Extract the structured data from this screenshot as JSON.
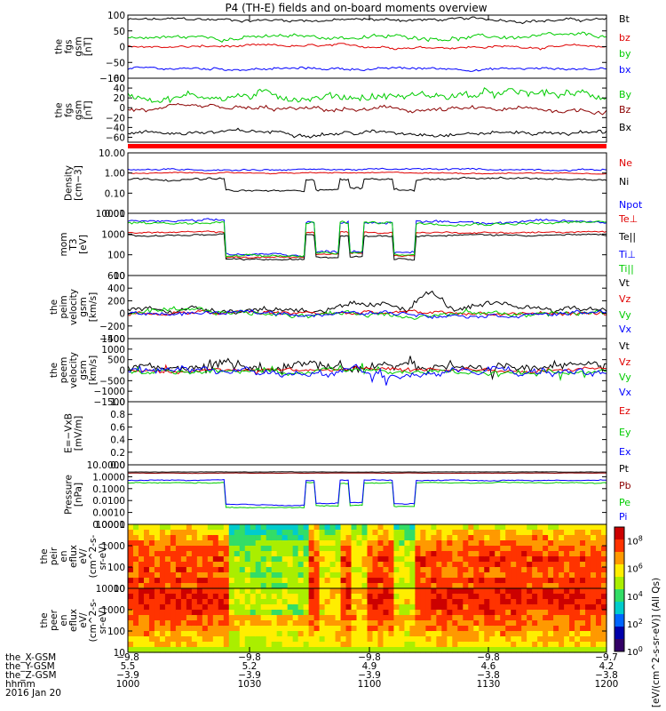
{
  "title": "P4 (TH-E) fields and on-board moments overview",
  "colors": {
    "black": "#000000",
    "red": "#e00000",
    "green": "#00cc00",
    "blue": "#0000ff",
    "darkred": "#8b0000",
    "flag_red": "#ff0000",
    "white": "#ffffff"
  },
  "chart_data": [
    {
      "type": "line",
      "ylabel": [
        "the",
        "fgs",
        "gsm",
        "[nT]"
      ],
      "ylim": [
        -100,
        100
      ],
      "yticks": [
        {
          "v": 100,
          "label": "100"
        },
        {
          "v": 50,
          "label": "50"
        },
        {
          "v": 0,
          "label": "0"
        },
        {
          "v": -50,
          "label": "−50"
        },
        {
          "v": -100,
          "label": "−100"
        }
      ],
      "series": [
        {
          "name": "Bt",
          "color": "#000000",
          "base": 85,
          "amp": 6
        },
        {
          "name": "bz",
          "color": "#e00000",
          "base": 0,
          "amp": 5
        },
        {
          "name": "by",
          "color": "#00cc00",
          "base": 30,
          "amp": 8
        },
        {
          "name": "bx",
          "color": "#0000ff",
          "base": -70,
          "amp": 5
        }
      ]
    },
    {
      "type": "line",
      "ylabel": [
        "the",
        "fgs",
        "gsm",
        "[nT]"
      ],
      "ylim": [
        -70,
        60
      ],
      "yticks": [
        {
          "v": 60,
          "label": "60"
        },
        {
          "v": 40,
          "label": "40"
        },
        {
          "v": 20,
          "label": "20"
        },
        {
          "v": 0,
          "label": "0"
        },
        {
          "v": -20,
          "label": "−20"
        },
        {
          "v": -40,
          "label": "−40"
        },
        {
          "v": -60,
          "label": "−60"
        }
      ],
      "series": [
        {
          "name": "By",
          "color": "#00cc00",
          "base": 25,
          "amp": 10
        },
        {
          "name": "Bz",
          "color": "#8b0000",
          "base": -5,
          "amp": 6
        },
        {
          "name": "Bx",
          "color": "#000000",
          "base": -50,
          "amp": 5
        }
      ]
    },
    {
      "type": "line",
      "ylabel": [
        "Density",
        "[cm−3]"
      ],
      "log": true,
      "ylim": [
        0.01,
        10
      ],
      "yticks": [
        {
          "v": 10,
          "label": "10.00"
        },
        {
          "v": 1,
          "label": "1.00"
        },
        {
          "v": 0.1,
          "label": "0.10"
        },
        {
          "v": 0.01,
          "label": "0.01"
        }
      ],
      "series": [
        {
          "name": "Ne",
          "color": "#e00000",
          "base": 1.0,
          "amp": 0.2
        },
        {
          "name": "Ni",
          "color": "#000000",
          "base": 0.5,
          "amp": 0.4
        },
        {
          "name": "Npot",
          "color": "#0000ff",
          "base": 1.5,
          "amp": 0.3
        }
      ]
    },
    {
      "type": "line",
      "ylabel": [
        "mom",
        "T3",
        "[eV]"
      ],
      "log": true,
      "ylim": [
        10,
        10000
      ],
      "yticks": [
        {
          "v": 10000,
          "label": "10000"
        },
        {
          "v": 1000,
          "label": "1000"
        },
        {
          "v": 100,
          "label": "100"
        },
        {
          "v": 10,
          "label": "10"
        }
      ],
      "series": [
        {
          "name": "Te⊥",
          "color": "#e00000",
          "base": 1200,
          "amp": 0.3
        },
        {
          "name": "Te||",
          "color": "#000000",
          "base": 900,
          "amp": 0.3
        },
        {
          "name": "Ti⊥",
          "color": "#0000ff",
          "base": 4000,
          "amp": 0.5
        },
        {
          "name": "Ti||",
          "color": "#00cc00",
          "base": 3500,
          "amp": 0.5
        }
      ]
    },
    {
      "type": "line",
      "ylabel": [
        "the",
        "peim",
        "velocity",
        "gsm",
        "[km/s]"
      ],
      "ylim": [
        -400,
        600
      ],
      "yticks": [
        {
          "v": 600,
          "label": "600"
        },
        {
          "v": 400,
          "label": "400"
        },
        {
          "v": 200,
          "label": "200"
        },
        {
          "v": 0,
          "label": "0"
        },
        {
          "v": -200,
          "label": "−200"
        },
        {
          "v": -400,
          "label": "−400"
        }
      ],
      "series": [
        {
          "name": "Vt",
          "color": "#000000",
          "base": 80,
          "amp": 60
        },
        {
          "name": "Vz",
          "color": "#e00000",
          "base": 0,
          "amp": 40
        },
        {
          "name": "Vy",
          "color": "#00cc00",
          "base": 0,
          "amp": 50
        },
        {
          "name": "Vx",
          "color": "#0000ff",
          "base": 0,
          "amp": 40
        }
      ]
    },
    {
      "type": "line",
      "ylabel": [
        "the",
        "peem",
        "velocity",
        "gsm",
        "[km/s]"
      ],
      "ylim": [
        -1500,
        1500
      ],
      "yticks": [
        {
          "v": 1500,
          "label": "1500"
        },
        {
          "v": 1000,
          "label": "1000"
        },
        {
          "v": 500,
          "label": "500"
        },
        {
          "v": 0,
          "label": "0"
        },
        {
          "v": -500,
          "label": "−500"
        },
        {
          "v": -1000,
          "label": "−1000"
        },
        {
          "v": -1500,
          "label": "−1500"
        }
      ],
      "series": [
        {
          "name": "Vt",
          "color": "#000000",
          "base": 200,
          "amp": 250
        },
        {
          "name": "Vz",
          "color": "#e00000",
          "base": 0,
          "amp": 100
        },
        {
          "name": "Vy",
          "color": "#00cc00",
          "base": -50,
          "amp": 150
        },
        {
          "name": "Vx",
          "color": "#0000ff",
          "base": -100,
          "amp": 200
        }
      ]
    },
    {
      "type": "line",
      "ylabel": [
        "E=−VxB",
        "[mV/m]"
      ],
      "ylim": [
        0,
        1
      ],
      "yticks": [
        {
          "v": 1,
          "label": "1.0"
        },
        {
          "v": 0.8,
          "label": "0.8"
        },
        {
          "v": 0.6,
          "label": "0.6"
        },
        {
          "v": 0.4,
          "label": "0.4"
        },
        {
          "v": 0.2,
          "label": "0.2"
        },
        {
          "v": 0,
          "label": "0.0"
        }
      ],
      "series": [
        {
          "name": "Ez",
          "color": "#e00000"
        },
        {
          "name": "Ey",
          "color": "#00cc00"
        },
        {
          "name": "Ex",
          "color": "#0000ff"
        }
      ]
    },
    {
      "type": "line",
      "ylabel": [
        "Pressure",
        "[nPa]"
      ],
      "log": true,
      "ylim": [
        0.0001,
        10
      ],
      "yticks": [
        {
          "v": 10,
          "label": "10.0000"
        },
        {
          "v": 1,
          "label": "1.0000"
        },
        {
          "v": 0.1,
          "label": "0.1000"
        },
        {
          "v": 0.01,
          "label": "0.0100"
        },
        {
          "v": 0.001,
          "label": "0.0010"
        },
        {
          "v": 0.0001,
          "label": "0.0001"
        }
      ],
      "series": [
        {
          "name": "Pt",
          "color": "#000000",
          "base": 2.5,
          "amp": 0.1
        },
        {
          "name": "Pb",
          "color": "#8b0000",
          "base": 2.0,
          "amp": 0.1
        },
        {
          "name": "Pe",
          "color": "#00cc00",
          "base": 0.3,
          "amp": 0.3
        },
        {
          "name": "Pi",
          "color": "#0000ff",
          "base": 0.5,
          "amp": 0.3
        }
      ]
    },
    {
      "type": "heatmap",
      "ylabel": [
        "the",
        "peir",
        "en",
        "eflux",
        "eV/",
        "(cm^2-s-",
        "sr-eV)"
      ],
      "log": true,
      "ylim": [
        10,
        10000
      ],
      "yticks": [
        {
          "v": 10000,
          "label": "10000"
        },
        {
          "v": 1000,
          "label": "1000"
        },
        {
          "v": 100,
          "label": "100"
        },
        {
          "v": 10,
          "label": "10"
        }
      ]
    },
    {
      "type": "heatmap",
      "ylabel": [
        "the",
        "peer",
        "en",
        "eflux",
        "eV/",
        "(cm^2-s-",
        "sr-eV)"
      ],
      "log": true,
      "ylim": [
        10,
        10000
      ],
      "yticks": [
        {
          "v": 10000,
          "label": "10000"
        },
        {
          "v": 1000,
          "label": "1000"
        },
        {
          "v": 100,
          "label": "100"
        },
        {
          "v": 10,
          "label": "10"
        }
      ]
    }
  ],
  "colorbar": {
    "label": "[eV/(cm^2-s-sr-eV)] (All Qs)",
    "ticks": [
      {
        "exp": 8,
        "label": "10^8"
      },
      {
        "exp": 6,
        "label": "10^6"
      },
      {
        "exp": 4,
        "label": "10^4"
      },
      {
        "exp": 2,
        "label": "10^2"
      },
      {
        "exp": 0,
        "label": "10^0"
      }
    ]
  },
  "xaxis": {
    "rows": [
      {
        "label": "the_X-GSM",
        "values": [
          "−9.8",
          "−9.8",
          "−9.8",
          "−9.8",
          "−9.7"
        ]
      },
      {
        "label": "the_Y-GSM",
        "values": [
          "5.5",
          "5.2",
          "4.9",
          "4.6",
          "4.2"
        ]
      },
      {
        "label": "the_Z-GSM",
        "values": [
          "−3.9",
          "−3.9",
          "−3.9",
          "−3.8",
          "−3.8"
        ]
      },
      {
        "label": "hhmm",
        "values": [
          "1000",
          "1030",
          "1100",
          "1130",
          "1200"
        ]
      }
    ],
    "date": "2016 Jan 20"
  }
}
